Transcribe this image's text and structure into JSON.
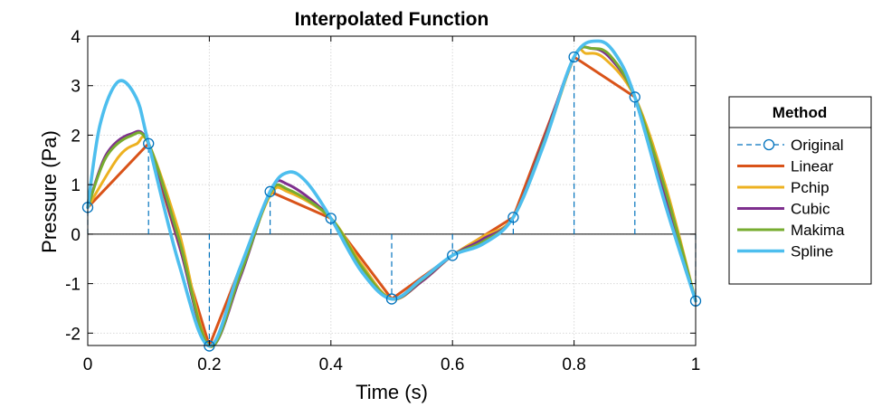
{
  "chart_data": {
    "type": "line",
    "title": "Interpolated Function",
    "xlabel": "Time (s)",
    "ylabel": "Pressure (Pa)",
    "xlim": [
      0,
      1
    ],
    "ylim": [
      -2.25,
      4
    ],
    "xticks": [
      0,
      0.2,
      0.4,
      0.6,
      0.8,
      1
    ],
    "yticks": [
      -2,
      -1,
      0,
      1,
      2,
      3,
      4
    ],
    "xtick_labels": [
      "0",
      "0.2",
      "0.4",
      "0.6",
      "0.8",
      "1"
    ],
    "ytick_labels": [
      "-2",
      "-1",
      "0",
      "1",
      "2",
      "3",
      "4"
    ],
    "grid": true,
    "legend_title": "Method",
    "legend_placement": "outside-right",
    "series": [
      {
        "name": "Original",
        "style": "stem-dashed-circle",
        "color": "#0072BD",
        "x": [
          0,
          0.1,
          0.2,
          0.3,
          0.4,
          0.5,
          0.6,
          0.7,
          0.8,
          0.9,
          1.0
        ],
        "y": [
          0.54,
          1.83,
          -2.26,
          0.86,
          0.32,
          -1.31,
          -0.43,
          0.34,
          3.58,
          2.77,
          -1.35
        ]
      },
      {
        "name": "Linear",
        "color": "#D95319",
        "x": [
          0,
          0.1,
          0.2,
          0.3,
          0.4,
          0.5,
          0.6,
          0.7,
          0.8,
          0.9,
          1.0
        ],
        "y": [
          0.54,
          1.83,
          -2.26,
          0.86,
          0.32,
          -1.31,
          -0.43,
          0.34,
          3.58,
          2.77,
          -1.35
        ]
      },
      {
        "name": "Pchip",
        "color": "#EDB120",
        "x": [
          0,
          0.05,
          0.08,
          0.1,
          0.15,
          0.2,
          0.25,
          0.3,
          0.33,
          0.4,
          0.45,
          0.5,
          0.55,
          0.6,
          0.65,
          0.7,
          0.75,
          0.8,
          0.82,
          0.85,
          0.9,
          0.95,
          1.0
        ],
        "y": [
          0.54,
          1.55,
          1.82,
          1.83,
          0.05,
          -2.26,
          -0.8,
          0.78,
          0.85,
          0.32,
          -0.6,
          -1.31,
          -0.95,
          -0.43,
          -0.05,
          0.34,
          1.8,
          3.58,
          3.65,
          3.55,
          2.77,
          1.0,
          -1.35
        ]
      },
      {
        "name": "Cubic",
        "color": "#7E2F8E",
        "x": [
          0,
          0.03,
          0.07,
          0.1,
          0.15,
          0.2,
          0.25,
          0.3,
          0.33,
          0.4,
          0.45,
          0.5,
          0.55,
          0.6,
          0.65,
          0.7,
          0.75,
          0.8,
          0.83,
          0.86,
          0.9,
          0.95,
          1.0
        ],
        "y": [
          0.54,
          1.6,
          2.02,
          1.83,
          -0.2,
          -2.26,
          -0.9,
          0.86,
          1.0,
          0.32,
          -0.7,
          -1.31,
          -0.95,
          -0.43,
          -0.1,
          0.34,
          1.9,
          3.58,
          3.75,
          3.55,
          2.77,
          0.8,
          -1.35
        ]
      },
      {
        "name": "Makima",
        "color": "#77AC30",
        "x": [
          0,
          0.03,
          0.07,
          0.1,
          0.15,
          0.2,
          0.25,
          0.3,
          0.33,
          0.4,
          0.45,
          0.5,
          0.55,
          0.6,
          0.65,
          0.7,
          0.75,
          0.8,
          0.83,
          0.86,
          0.9,
          0.95,
          1.0
        ],
        "y": [
          0.54,
          1.55,
          1.98,
          1.83,
          -0.1,
          -2.26,
          -0.85,
          0.82,
          0.9,
          0.32,
          -0.65,
          -1.31,
          -0.92,
          -0.43,
          -0.15,
          0.34,
          1.85,
          3.58,
          3.75,
          3.6,
          2.77,
          0.9,
          -1.35
        ]
      },
      {
        "name": "Spline",
        "color": "#4DBEEE",
        "x": [
          0,
          0.02,
          0.05,
          0.08,
          0.1,
          0.15,
          0.2,
          0.25,
          0.3,
          0.33,
          0.36,
          0.4,
          0.45,
          0.5,
          0.55,
          0.6,
          0.65,
          0.7,
          0.75,
          0.8,
          0.84,
          0.87,
          0.9,
          0.95,
          1.0
        ],
        "y": [
          0.54,
          2.2,
          3.08,
          2.75,
          1.83,
          -0.6,
          -2.26,
          -0.7,
          0.86,
          1.25,
          1.05,
          0.32,
          -0.75,
          -1.31,
          -0.9,
          -0.43,
          -0.2,
          0.34,
          1.8,
          3.58,
          3.9,
          3.6,
          2.77,
          0.6,
          -1.35
        ]
      }
    ]
  }
}
